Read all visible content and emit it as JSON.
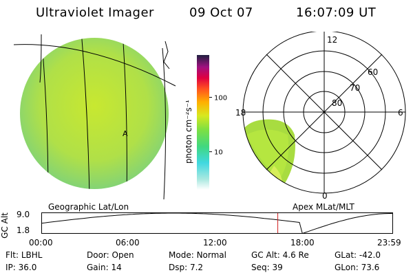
{
  "header": {
    "instrument": "Ultraviolet Imager",
    "date": "09 Oct 07",
    "time": "16:07:09 UT"
  },
  "colorbar": {
    "label": "photon cm⁻²s⁻¹",
    "ticks": [
      {
        "label": "100",
        "value": 100
      },
      {
        "label": "10",
        "value": 10
      }
    ],
    "range": [
      2,
      600
    ],
    "scale": "log"
  },
  "left_panel": {
    "caption": "Geographic Lat/Lon",
    "marker": "A"
  },
  "right_panel": {
    "caption": "Apex MLat/MLT",
    "mlt_labels": {
      "top": "12",
      "left": "18",
      "right": "6",
      "bottom": "0"
    },
    "mlat_labels": [
      "60",
      "70",
      "80"
    ]
  },
  "altitude_plot": {
    "ylabel": "GC Alt",
    "yticks": [
      "9.0",
      "1.8"
    ],
    "ylim": [
      1.8,
      9.0
    ],
    "xticks": [
      "00:00",
      "06:00",
      "12:00",
      "18:00",
      "23:59"
    ],
    "current_time_hours": 16.12,
    "marker_color": "#d02020"
  },
  "status": {
    "row1": [
      {
        "label": "Flt:",
        "value": "LBHL"
      },
      {
        "label": "Door:",
        "value": "Open"
      },
      {
        "label": "Mode:",
        "value": "Normal"
      },
      {
        "label": "GC Alt:",
        "value": "4.6 Re"
      },
      {
        "label": "GLat:",
        "value": "-42.0"
      }
    ],
    "row2": [
      {
        "label": "IP:",
        "value": "36.0"
      },
      {
        "label": "Gain:",
        "value": "14"
      },
      {
        "label": "Dsp:",
        "value": "7.2"
      },
      {
        "label": "Seq:",
        "value": "39"
      },
      {
        "label": "GLon:",
        "value": "73.6"
      }
    ]
  },
  "colors": {
    "earth_fill": "#b8e040",
    "aurora_fill": "#a8dc40",
    "marker": "#d02020"
  }
}
